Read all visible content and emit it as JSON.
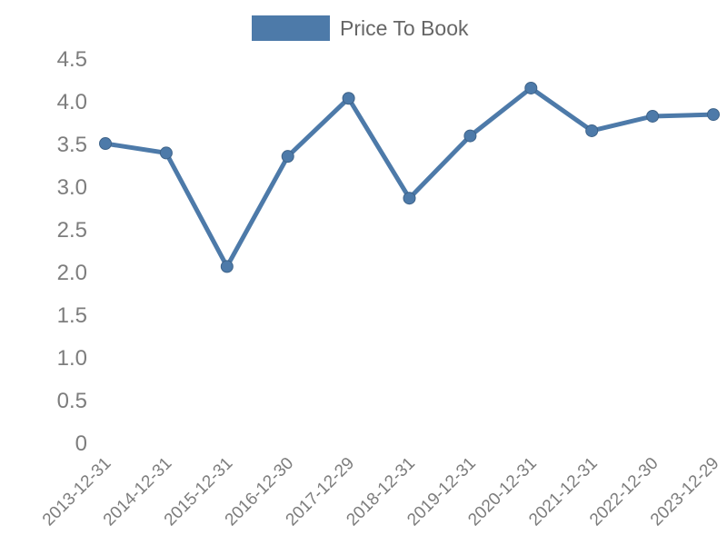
{
  "chart_data": {
    "type": "line",
    "title": "",
    "legend_entries": [
      "Price To Book"
    ],
    "legend_position": "top-center",
    "x": [
      "2013-12-31",
      "2014-12-31",
      "2015-12-31",
      "2016-12-30",
      "2017-12-29",
      "2018-12-31",
      "2019-12-31",
      "2020-12-31",
      "2021-12-31",
      "2022-12-30",
      "2023-12-29"
    ],
    "series": [
      {
        "name": "Price To Book",
        "values": [
          3.51,
          3.4,
          2.07,
          3.36,
          4.04,
          2.87,
          3.6,
          4.16,
          3.66,
          3.83,
          3.85
        ]
      }
    ],
    "xlabel": "",
    "ylabel": "",
    "ylim": [
      0,
      4.5
    ],
    "ytick_labels": [
      "0",
      "0.5",
      "1.0",
      "1.5",
      "2.0",
      "2.5",
      "3.0",
      "3.5",
      "4.0",
      "4.5"
    ],
    "xtick_rotation_deg": 45,
    "grid": false,
    "axis_lines": false,
    "marker": "circle",
    "colors": {
      "line": "#4d7aa9",
      "marker_fill": "#4d7aa9",
      "marker_edge": "#3e6389",
      "axis_text": "#7d7d7d",
      "legend_text": "#666666",
      "background": "#ffffff"
    }
  }
}
